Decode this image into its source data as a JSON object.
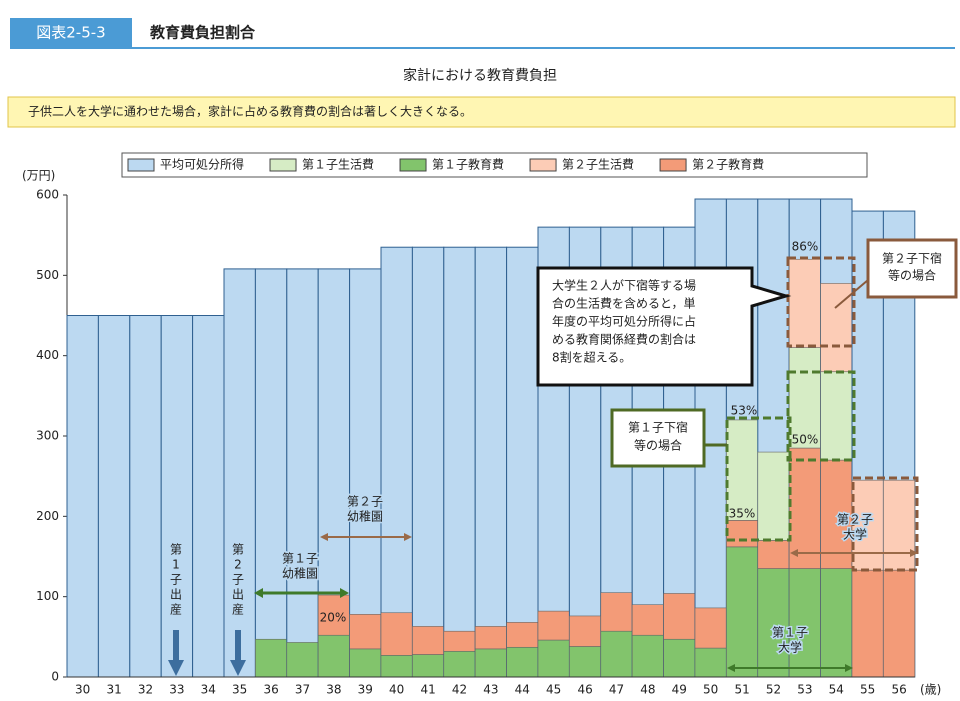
{
  "chart_data": {
    "type": "bar",
    "label": "図表2-5-3",
    "heading": "教育費負担割合",
    "title": "家計における教育費負担",
    "subtitle": "子供二人を大学に通わせた場合，家計に占める教育費の割合は著しく大きくなる。",
    "y_unit": "(万円)",
    "x_unit": "(歳)",
    "categories": [
      "30",
      "31",
      "32",
      "33",
      "34",
      "35",
      "36",
      "37",
      "38",
      "39",
      "40",
      "41",
      "42",
      "43",
      "44",
      "45",
      "46",
      "47",
      "48",
      "49",
      "50",
      "51",
      "52",
      "53",
      "54",
      "55",
      "56"
    ],
    "ylim": [
      0,
      600
    ],
    "yticks": [
      0,
      100,
      200,
      300,
      400,
      500,
      600
    ],
    "grid": false,
    "legend": "top",
    "series": [
      {
        "name": "平均可処分所得",
        "color": "#bcd9f1",
        "values": [
          450,
          450,
          450,
          450,
          450,
          508,
          508,
          508,
          508,
          508,
          535,
          535,
          535,
          535,
          535,
          560,
          560,
          560,
          560,
          560,
          595,
          595,
          595,
          595,
          595,
          580,
          580
        ]
      },
      {
        "name": "第１子生活費",
        "color": "#d6ecc5",
        "values": [
          null,
          null,
          null,
          null,
          null,
          null,
          null,
          null,
          null,
          null,
          null,
          null,
          null,
          null,
          null,
          null,
          null,
          null,
          null,
          null,
          null,
          125,
          110,
          125,
          110,
          null,
          null
        ]
      },
      {
        "name": "第１子教育費",
        "color": "#82c46c",
        "values": [
          null,
          null,
          null,
          null,
          null,
          null,
          47,
          43,
          52,
          35,
          27,
          28,
          32,
          35,
          37,
          46,
          38,
          57,
          52,
          47,
          36,
          162,
          135,
          135,
          135,
          null,
          null
        ]
      },
      {
        "name": "第２子生活費",
        "color": "#fcccb6",
        "values": [
          null,
          null,
          null,
          null,
          null,
          null,
          null,
          null,
          null,
          null,
          null,
          null,
          null,
          null,
          null,
          null,
          null,
          null,
          null,
          null,
          null,
          null,
          null,
          110,
          110,
          112,
          112
        ]
      },
      {
        "name": "第２子教育費",
        "color": "#f39b78",
        "values": [
          null,
          null,
          null,
          null,
          null,
          null,
          null,
          null,
          50,
          43,
          53,
          35,
          25,
          28,
          31,
          36,
          38,
          48,
          38,
          57,
          50,
          33,
          35,
          150,
          135,
          133,
          133
        ]
      }
    ],
    "annotations": [
      {
        "text": [
          "86%"
        ]
      },
      {
        "text": [
          "53%"
        ]
      },
      {
        "text": [
          "50%"
        ]
      },
      {
        "text": [
          "35%"
        ]
      },
      {
        "text": [
          "20%"
        ]
      },
      {
        "text": [
          "第２子下宿",
          "等の場合"
        ]
      },
      {
        "text": [
          "大学生２人が下宿等する場",
          "合の生活費を含めると，単",
          "年度の平均可処分所得に占",
          "める教育関係経費の割合は",
          "8割を超える。"
        ]
      },
      {
        "text": [
          "第１子下宿",
          "等の場合"
        ]
      },
      {
        "text": [
          "第２子",
          "幼稚園"
        ]
      },
      {
        "text": [
          "第１子",
          "幼稚園"
        ]
      },
      {
        "text": [
          "第２子",
          "大学"
        ]
      },
      {
        "text": [
          "第１子",
          "大学"
        ]
      },
      {
        "text": [
          "第",
          "1",
          "子",
          "出",
          "産"
        ]
      },
      {
        "text": [
          "第",
          "2",
          "子",
          "出",
          "産"
        ]
      }
    ]
  }
}
